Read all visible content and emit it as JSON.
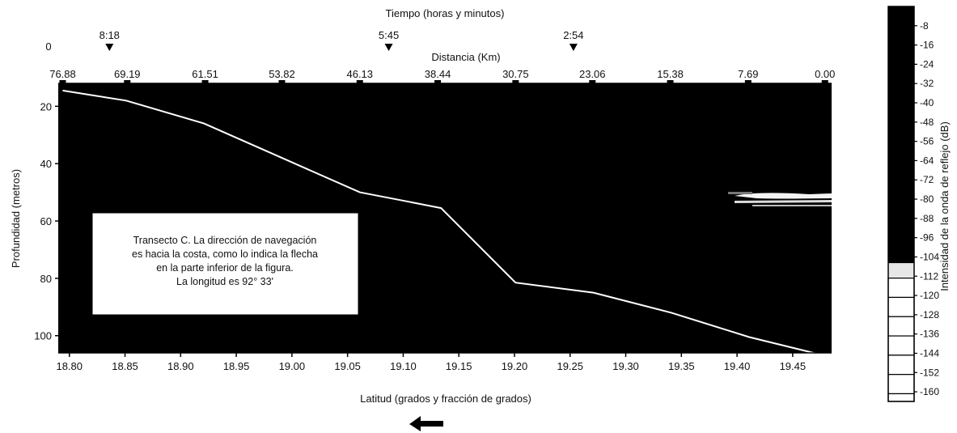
{
  "chart_data": {
    "type": "line",
    "title": "",
    "time_axis": {
      "label": "Tiempo (horas y minutos)",
      "start_label": "0",
      "markers": [
        {
          "label": "8:18",
          "lat": 18.836
        },
        {
          "label": "5:45",
          "lat": 19.087
        },
        {
          "label": "2:54",
          "lat": 19.253
        }
      ]
    },
    "distance_axis": {
      "label": "Distancia (Km)",
      "ticks": [
        "76.88",
        "69.19",
        "61.51",
        "53.82",
        "46.13",
        "38.44",
        "30.75",
        "23.06",
        "15.38",
        "7.69",
        "0.00"
      ],
      "tick_lats": [
        18.794,
        18.852,
        18.922,
        18.991,
        19.061,
        19.131,
        19.201,
        19.27,
        19.34,
        19.41,
        19.479
      ]
    },
    "xlabel": "Latitud (grados y fracción de grados)",
    "ylabel": "Profundidad (metros)",
    "xlim": [
      18.79,
      19.485
    ],
    "ylim": [
      106,
      12
    ],
    "xticks": [
      "18.80",
      "18.85",
      "18.90",
      "18.95",
      "19.00",
      "19.05",
      "19.10",
      "19.15",
      "19.20",
      "19.25",
      "19.30",
      "19.35",
      "19.40",
      "19.45"
    ],
    "yticks": [
      "20",
      "40",
      "60",
      "80",
      "100"
    ],
    "series": [
      {
        "lat": [
          18.794,
          18.851,
          18.921,
          18.991,
          19.061,
          19.101,
          19.134,
          19.201,
          19.271,
          19.341,
          19.411,
          19.479
        ],
        "depth": [
          14.5,
          18.0,
          26.0,
          38.0,
          50.0,
          53.0,
          55.5,
          81.5,
          85.0,
          92.0,
          100.5,
          107.0
        ]
      }
    ],
    "colorbar": {
      "label": "Intensidad de la onda de reflejo (dB)",
      "ticks": [
        "-8",
        "-16",
        "-24",
        "-32",
        "-40",
        "-48",
        "-56",
        "-64",
        "-72",
        "-80",
        "-88",
        "-96",
        "-104",
        "-112",
        "-120",
        "-128",
        "-136",
        "-144",
        "-152",
        "-160"
      ],
      "range": [
        0,
        -160
      ]
    },
    "annotation": [
      "Transecto C. La dirección de navegación",
      "es hacia la costa, como lo indica la flecha",
      "en la parte inferior de la figura.",
      "La longitud es 92° 33'"
    ],
    "direction_arrow": "left"
  }
}
